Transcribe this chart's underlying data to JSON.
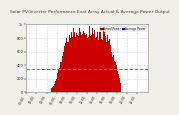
{
  "title": "Solar PV/Inverter Performance East Array Actual & Average Power Output",
  "title_color": "#404040",
  "title_fontsize": 3.2,
  "bg_color": "#f0f0e8",
  "plot_bg": "#ffffff",
  "grid_color": "#bbbbbb",
  "bar_color": "#cc0000",
  "avg_line_color": "#4488ff",
  "avg_value": 0.35,
  "ylim": [
    0,
    1.0
  ],
  "y_tick_labels": [
    "0",
    "200",
    "400",
    "600",
    "800",
    "1k"
  ],
  "legend_labels": [
    "Actual Power",
    "Average Power"
  ],
  "legend_colors": [
    "#cc0000",
    "#0000cc"
  ],
  "n_bars": 288
}
